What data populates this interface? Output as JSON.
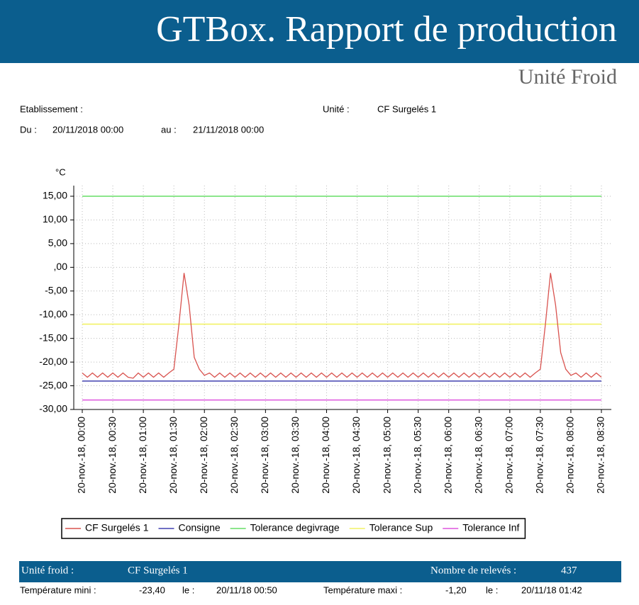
{
  "header": {
    "title": "GTBox. Rapport de production",
    "subtitle": "Unité Froid"
  },
  "info": {
    "etablissement_label": "Etablissement :",
    "unite_label": "Unité :",
    "unite_value": "CF Surgelés 1",
    "du_label": "Du :",
    "du_value": "20/11/2018 00:00",
    "au_label": "au :",
    "au_value": "21/11/2018 00:00"
  },
  "chart_data": {
    "type": "line",
    "ylabel": "°C",
    "ylim": [
      -30,
      15
    ],
    "yticks": [
      {
        "value": -30,
        "label": "-30,00"
      },
      {
        "value": -25,
        "label": "-25,00"
      },
      {
        "value": -20,
        "label": "-20,00"
      },
      {
        "value": -15,
        "label": "-15,00"
      },
      {
        "value": -10,
        "label": "-10,00"
      },
      {
        "value": -5,
        "label": "-5,00"
      },
      {
        "value": 0,
        "label": ",00"
      },
      {
        "value": 5,
        "label": "5,00"
      },
      {
        "value": 10,
        "label": "10,00"
      },
      {
        "value": 15,
        "label": "15,00"
      }
    ],
    "grid": true,
    "categories": [
      "20-nov.-18, 00:00",
      null,
      null,
      null,
      null,
      null,
      "20-nov.-18, 00:30",
      null,
      null,
      null,
      null,
      null,
      "20-nov.-18, 01:00",
      null,
      null,
      null,
      null,
      null,
      "20-nov.-18, 01:30",
      null,
      null,
      null,
      null,
      null,
      "20-nov.-18, 02:00",
      null,
      null,
      null,
      null,
      null,
      "20-nov.-18, 02:30",
      null,
      null,
      null,
      null,
      null,
      "20-nov.-18, 03:00",
      null,
      null,
      null,
      null,
      null,
      "20-nov.-18, 03:30",
      null,
      null,
      null,
      null,
      null,
      "20-nov.-18, 04:00",
      null,
      null,
      null,
      null,
      null,
      "20-nov.-18, 04:30",
      null,
      null,
      null,
      null,
      null,
      "20-nov.-18, 05:00",
      null,
      null,
      null,
      null,
      null,
      "20-nov.-18, 05:30",
      null,
      null,
      null,
      null,
      null,
      "20-nov.-18, 06:00",
      null,
      null,
      null,
      null,
      null,
      "20-nov.-18, 06:30",
      null,
      null,
      null,
      null,
      null,
      "20-nov.-18, 07:00",
      null,
      null,
      null,
      null,
      null,
      "20-nov.-18, 07:30",
      null,
      null,
      null,
      null,
      null,
      "20-nov.-18, 08:00",
      null,
      null,
      null,
      null,
      null,
      "20-nov.-18, 08:30"
    ],
    "series": [
      {
        "name": "CF Surgelés 1",
        "color": "#d9534f",
        "values": [
          -22.3,
          -23.2,
          -22.3,
          -23.2,
          -22.3,
          -23.2,
          -22.3,
          -23.2,
          -22.3,
          -23.2,
          -23.4,
          -22.3,
          -23.2,
          -22.3,
          -23.2,
          -22.3,
          -23.2,
          -22.3,
          -21.5,
          -12,
          -1.2,
          -8,
          -19,
          -21.5,
          -22.8,
          -22.3,
          -23.2,
          -22.3,
          -23.2,
          -22.3,
          -23.2,
          -22.3,
          -23.2,
          -22.3,
          -23.2,
          -22.3,
          -23.2,
          -22.3,
          -23.2,
          -22.3,
          -23.2,
          -22.3,
          -23.2,
          -22.3,
          -23.2,
          -22.3,
          -23.2,
          -22.3,
          -23.2,
          -22.3,
          -23.2,
          -22.3,
          -23.2,
          -22.3,
          -23.2,
          -22.3,
          -23.2,
          -22.3,
          -23.2,
          -22.3,
          -23.2,
          -22.3,
          -23.2,
          -22.3,
          -23.2,
          -22.3,
          -23.2,
          -22.3,
          -23.2,
          -22.3,
          -23.2,
          -22.3,
          -23.2,
          -22.3,
          -23.2,
          -22.3,
          -23.2,
          -22.3,
          -23.2,
          -22.3,
          -23.2,
          -22.3,
          -23.2,
          -22.3,
          -23.2,
          -22.3,
          -23.2,
          -22.3,
          -23.2,
          -22.3,
          -21.5,
          -12,
          -1.2,
          -8,
          -18,
          -21.5,
          -22.8,
          -22.3,
          -23.2,
          -22.3,
          -23.2,
          -22.3,
          -23.2
        ]
      },
      {
        "name": "Consigne",
        "color": "#4040b0",
        "values": [
          -24,
          -24,
          -24,
          -24,
          -24,
          -24,
          -24,
          -24,
          -24,
          -24,
          -24,
          -24,
          -24,
          -24,
          -24,
          -24,
          -24,
          -24,
          -24,
          -24,
          -24,
          -24,
          -24,
          -24,
          -24,
          -24,
          -24,
          -24,
          -24,
          -24,
          -24,
          -24,
          -24,
          -24,
          -24,
          -24,
          -24,
          -24,
          -24,
          -24,
          -24,
          -24,
          -24,
          -24,
          -24,
          -24,
          -24,
          -24,
          -24,
          -24,
          -24,
          -24,
          -24,
          -24,
          -24,
          -24,
          -24,
          -24,
          -24,
          -24,
          -24,
          -24,
          -24,
          -24,
          -24,
          -24,
          -24,
          -24,
          -24,
          -24,
          -24,
          -24,
          -24,
          -24,
          -24,
          -24,
          -24,
          -24,
          -24,
          -24,
          -24,
          -24,
          -24,
          -24,
          -24,
          -24,
          -24,
          -24,
          -24,
          -24,
          -24,
          -24,
          -24,
          -24,
          -24,
          -24,
          -24,
          -24,
          -24,
          -24,
          -24,
          -24,
          -24
        ]
      },
      {
        "name": "Tolerance degivrage",
        "color": "#66dd66",
        "values": [
          15,
          15,
          15,
          15,
          15,
          15,
          15,
          15,
          15,
          15,
          15,
          15,
          15,
          15,
          15,
          15,
          15,
          15,
          15,
          15,
          15,
          15,
          15,
          15,
          15,
          15,
          15,
          15,
          15,
          15,
          15,
          15,
          15,
          15,
          15,
          15,
          15,
          15,
          15,
          15,
          15,
          15,
          15,
          15,
          15,
          15,
          15,
          15,
          15,
          15,
          15,
          15,
          15,
          15,
          15,
          15,
          15,
          15,
          15,
          15,
          15,
          15,
          15,
          15,
          15,
          15,
          15,
          15,
          15,
          15,
          15,
          15,
          15,
          15,
          15,
          15,
          15,
          15,
          15,
          15,
          15,
          15,
          15,
          15,
          15,
          15,
          15,
          15,
          15,
          15,
          15,
          15,
          15,
          15,
          15,
          15,
          15,
          15,
          15,
          15,
          15,
          15,
          15
        ]
      },
      {
        "name": "Tolerance Sup",
        "color": "#f2f266",
        "values": [
          -12,
          -12,
          -12,
          -12,
          -12,
          -12,
          -12,
          -12,
          -12,
          -12,
          -12,
          -12,
          -12,
          -12,
          -12,
          -12,
          -12,
          -12,
          -12,
          -12,
          -12,
          -12,
          -12,
          -12,
          -12,
          -12,
          -12,
          -12,
          -12,
          -12,
          -12,
          -12,
          -12,
          -12,
          -12,
          -12,
          -12,
          -12,
          -12,
          -12,
          -12,
          -12,
          -12,
          -12,
          -12,
          -12,
          -12,
          -12,
          -12,
          -12,
          -12,
          -12,
          -12,
          -12,
          -12,
          -12,
          -12,
          -12,
          -12,
          -12,
          -12,
          -12,
          -12,
          -12,
          -12,
          -12,
          -12,
          -12,
          -12,
          -12,
          -12,
          -12,
          -12,
          -12,
          -12,
          -12,
          -12,
          -12,
          -12,
          -12,
          -12,
          -12,
          -12,
          -12,
          -12,
          -12,
          -12,
          -12,
          -12,
          -12,
          -12,
          -12,
          -12,
          -12,
          -12,
          -12,
          -12,
          -12,
          -12,
          -12,
          -12,
          -12,
          -12
        ]
      },
      {
        "name": "Tolerance Inf",
        "color": "#dd55dd",
        "values": [
          -28,
          -28,
          -28,
          -28,
          -28,
          -28,
          -28,
          -28,
          -28,
          -28,
          -28,
          -28,
          -28,
          -28,
          -28,
          -28,
          -28,
          -28,
          -28,
          -28,
          -28,
          -28,
          -28,
          -28,
          -28,
          -28,
          -28,
          -28,
          -28,
          -28,
          -28,
          -28,
          -28,
          -28,
          -28,
          -28,
          -28,
          -28,
          -28,
          -28,
          -28,
          -28,
          -28,
          -28,
          -28,
          -28,
          -28,
          -28,
          -28,
          -28,
          -28,
          -28,
          -28,
          -28,
          -28,
          -28,
          -28,
          -28,
          -28,
          -28,
          -28,
          -28,
          -28,
          -28,
          -28,
          -28,
          -28,
          -28,
          -28,
          -28,
          -28,
          -28,
          -28,
          -28,
          -28,
          -28,
          -28,
          -28,
          -28,
          -28,
          -28,
          -28,
          -28,
          -28,
          -28,
          -28,
          -28,
          -28,
          -28,
          -28,
          -28,
          -28,
          -28,
          -28,
          -28,
          -28,
          -28,
          -28,
          -28,
          -28,
          -28,
          -28,
          -28
        ]
      }
    ]
  },
  "footer": {
    "unite_label": "Unité froid :",
    "unite_value": "CF Surgelés 1",
    "releves_label": "Nombre de relevés :",
    "releves_value": "437",
    "mini_label": "Température mini :",
    "mini_value": "-23,40",
    "mini_le": "le :",
    "mini_date": "20/11/18 00:50",
    "maxi_label": "Température maxi :",
    "maxi_value": "-1,20",
    "maxi_le": "le :",
    "maxi_date": "20/11/18 01:42"
  }
}
